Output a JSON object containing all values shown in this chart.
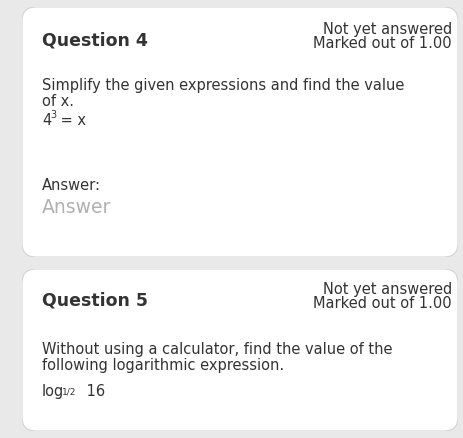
{
  "bg_color": "#e9e9e9",
  "card_color": "#ffffff",
  "left_bar_color": "#d0d0d0",
  "q4_number": "Question 4",
  "q4_status_line1": "Not yet answered",
  "q4_status_line2": "Marked out of 1.00",
  "q4_body_line1": "Simplify the given expressions and find the value",
  "q4_body_line2": "of x.",
  "q4_expr_base": "4",
  "q4_expr_exp": "3",
  "q4_expr_rest": " = x",
  "q4_answer_label": "Answer:",
  "q4_answer_placeholder": "Answer",
  "q5_number": "Question 5",
  "q5_status_line1": "Not yet answered",
  "q5_status_line2": "Marked out of 1.00",
  "q5_body_line1": "Without using a calculator, find the value of the",
  "q5_body_line2": "following logarithmic expression.",
  "q5_expr": "log",
  "q5_sub": "1/2",
  "q5_expr_rest": " 16",
  "text_color": "#333333",
  "placeholder_color": "#b0b0b0",
  "body_fontsize": 10.5,
  "title_fontsize": 12.5,
  "status_fontsize": 10.5
}
